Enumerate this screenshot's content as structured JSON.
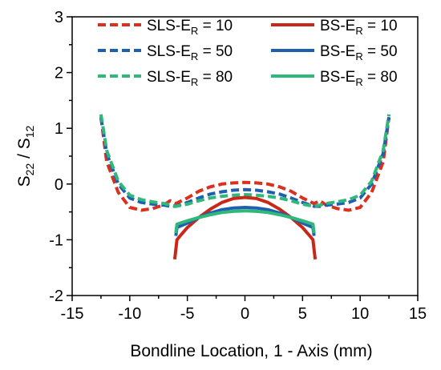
{
  "chart_data": {
    "type": "line",
    "xlabel": "Bondline Location, 1 - Axis (mm)",
    "ylabel": "S22 / S12",
    "ylabel_parts": {
      "base": "S",
      "sub1": "22",
      "sep": " / S",
      "sub2": "12"
    },
    "xlim": [
      -15,
      15
    ],
    "ylim": [
      -2,
      3
    ],
    "xticks": [
      -15,
      -10,
      -5,
      0,
      5,
      10,
      15
    ],
    "yticks": [
      -2,
      -1,
      0,
      1,
      2,
      3
    ],
    "grid": false,
    "legend_placement": "top",
    "series": [
      {
        "name": "SLS-ER = 10",
        "name_base": "SLS-E",
        "name_sub": "R",
        "name_suffix": " = 10",
        "color": "#d9301f",
        "dash": true,
        "x": [
          -12.5,
          -12,
          -11,
          -10,
          -9,
          -8,
          -7,
          -6.5,
          -6,
          -5,
          -4,
          -3,
          -2,
          -1,
          0,
          1,
          2,
          3,
          4,
          5,
          6,
          6.5,
          7,
          8,
          9,
          10,
          11,
          12,
          12.5
        ],
        "y": [
          1.2,
          0.4,
          -0.15,
          -0.42,
          -0.47,
          -0.44,
          -0.37,
          -0.3,
          -0.35,
          -0.25,
          -0.13,
          -0.05,
          0.0,
          0.02,
          0.03,
          0.02,
          0.0,
          -0.05,
          -0.13,
          -0.25,
          -0.35,
          -0.3,
          -0.37,
          -0.44,
          -0.47,
          -0.42,
          -0.15,
          0.4,
          1.2
        ]
      },
      {
        "name": "SLS-ER = 50",
        "name_base": "SLS-E",
        "name_sub": "R",
        "name_suffix": " = 50",
        "color": "#1f5fb0",
        "dash": true,
        "x": [
          -12.5,
          -12,
          -11,
          -10,
          -9,
          -8,
          -7,
          -6.5,
          -6,
          -5,
          -4,
          -3,
          -2,
          -1,
          0,
          1,
          2,
          3,
          4,
          5,
          6,
          6.5,
          7,
          8,
          9,
          10,
          11,
          12,
          12.5
        ],
        "y": [
          1.2,
          0.55,
          0.0,
          -0.25,
          -0.33,
          -0.36,
          -0.38,
          -0.4,
          -0.4,
          -0.33,
          -0.25,
          -0.18,
          -0.14,
          -0.11,
          -0.1,
          -0.11,
          -0.14,
          -0.18,
          -0.25,
          -0.33,
          -0.4,
          -0.4,
          -0.38,
          -0.36,
          -0.33,
          -0.25,
          0.0,
          0.55,
          1.2
        ]
      },
      {
        "name": "SLS-ER = 80",
        "name_base": "SLS-E",
        "name_sub": "R",
        "name_suffix": " = 80",
        "color": "#2fb87a",
        "dash": true,
        "x": [
          -12.5,
          -12,
          -11,
          -10,
          -9,
          -8,
          -7,
          -6.5,
          -6,
          -5,
          -4,
          -3,
          -2,
          -1,
          0,
          1,
          2,
          3,
          4,
          5,
          6,
          6.5,
          7,
          8,
          9,
          10,
          11,
          12,
          12.5
        ],
        "y": [
          1.25,
          0.6,
          0.05,
          -0.2,
          -0.28,
          -0.32,
          -0.35,
          -0.38,
          -0.4,
          -0.36,
          -0.3,
          -0.25,
          -0.22,
          -0.2,
          -0.19,
          -0.2,
          -0.22,
          -0.25,
          -0.3,
          -0.36,
          -0.4,
          -0.38,
          -0.35,
          -0.32,
          -0.28,
          -0.2,
          0.05,
          0.6,
          1.25
        ]
      },
      {
        "name": "BS-ER = 10",
        "name_base": "BS-E",
        "name_sub": "R",
        "name_suffix": " = 10",
        "color": "#c8281a",
        "dash": false,
        "x": [
          -6.1,
          -5.9,
          -5.5,
          -5,
          -4,
          -3,
          -2,
          -1,
          0,
          1,
          2,
          3,
          4,
          5,
          5.5,
          5.9,
          6.1
        ],
        "y": [
          -1.35,
          -1.0,
          -0.9,
          -0.78,
          -0.6,
          -0.45,
          -0.33,
          -0.26,
          -0.24,
          -0.26,
          -0.33,
          -0.45,
          -0.6,
          -0.78,
          -0.9,
          -1.0,
          -1.35
        ]
      },
      {
        "name": "BS-ER = 50",
        "name_base": "BS-E",
        "name_sub": "R",
        "name_suffix": " = 50",
        "color": "#1f5fb0",
        "dash": false,
        "x": [
          -6,
          -5.9,
          -5,
          -4,
          -3,
          -2,
          -1,
          0,
          1,
          2,
          3,
          4,
          5,
          5.9,
          6
        ],
        "y": [
          -0.93,
          -0.78,
          -0.7,
          -0.6,
          -0.52,
          -0.46,
          -0.43,
          -0.42,
          -0.43,
          -0.46,
          -0.52,
          -0.6,
          -0.7,
          -0.78,
          -0.93
        ]
      },
      {
        "name": "BS-ER = 80",
        "name_base": "BS-E",
        "name_sub": "R",
        "name_suffix": " = 80",
        "color": "#2fb87a",
        "dash": false,
        "x": [
          -6,
          -5.9,
          -5,
          -4,
          -3,
          -2,
          -1,
          0,
          1,
          2,
          3,
          4,
          5,
          5.9,
          6
        ],
        "y": [
          -0.88,
          -0.72,
          -0.66,
          -0.6,
          -0.55,
          -0.51,
          -0.49,
          -0.48,
          -0.49,
          -0.51,
          -0.55,
          -0.6,
          -0.66,
          -0.72,
          -0.88
        ]
      }
    ]
  }
}
